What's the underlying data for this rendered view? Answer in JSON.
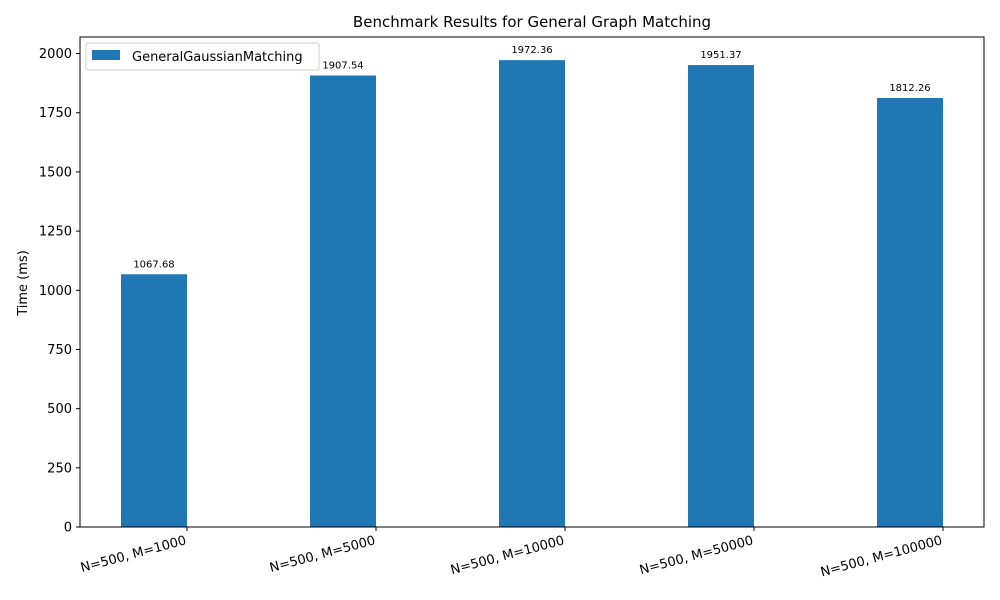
{
  "chart_data": {
    "type": "bar",
    "title": "Benchmark Results for General Graph Matching",
    "xlabel": "",
    "ylabel": "Time (ms)",
    "categories": [
      "N=500, M=1000",
      "N=500, M=5000",
      "N=500, M=10000",
      "N=500, M=50000",
      "N=500, M=100000"
    ],
    "series": [
      {
        "name": "GeneralGaussianMatching",
        "color": "#1f77b4",
        "values": [
          1067.68,
          1907.54,
          1972.36,
          1951.37,
          1812.26
        ],
        "data_labels": [
          "1067.68",
          "1907.54",
          "1972.36",
          "1951.37",
          "1812.26"
        ]
      }
    ],
    "ylim": [
      0,
      2070
    ],
    "yticks": [
      0,
      250,
      500,
      750,
      1000,
      1250,
      1500,
      1750,
      2000
    ],
    "grid": false,
    "legend_position": "top-left"
  }
}
